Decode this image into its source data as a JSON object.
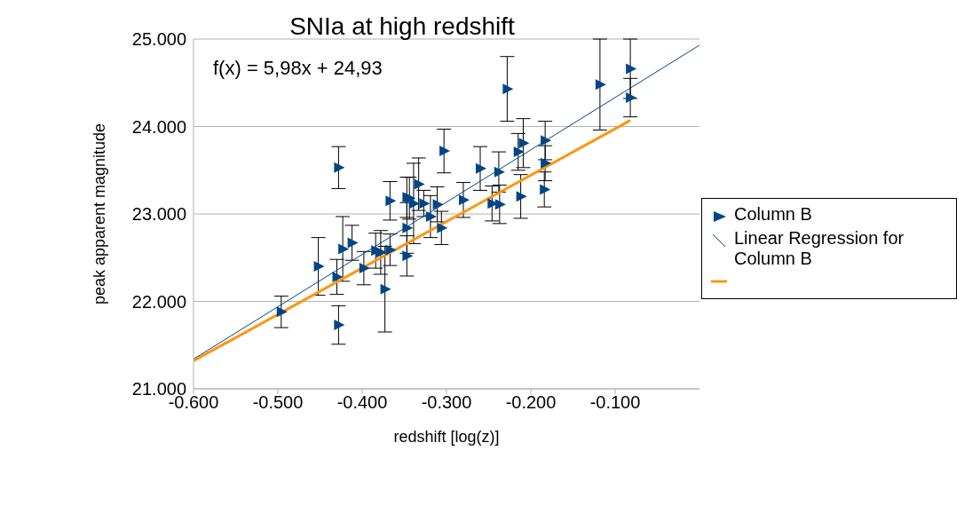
{
  "chart_data": {
    "type": "scatter",
    "title": "SNIa at high redshift",
    "xlabel": "redshift  [log(z)]",
    "ylabel": "peak apparent magnitude",
    "annotations": [
      "f(x) = 5,98x + 24,93"
    ],
    "xlim": [
      -0.6,
      0
    ],
    "xticks": [
      {
        "value": -0.6,
        "label": "-0.600"
      },
      {
        "value": -0.5,
        "label": "-0.500"
      },
      {
        "value": -0.4,
        "label": "-0.400"
      },
      {
        "value": -0.3,
        "label": "-0.300"
      },
      {
        "value": -0.2,
        "label": "-0.200"
      },
      {
        "value": -0.1,
        "label": "-0.100"
      }
    ],
    "ylim": [
      21,
      25
    ],
    "yticks": [
      {
        "value": 21,
        "label": "21.000"
      },
      {
        "value": 22,
        "label": "22.000"
      },
      {
        "value": 23,
        "label": "23.000"
      },
      {
        "value": 24,
        "label": "24.000"
      },
      {
        "value": 25,
        "label": "25.000"
      }
    ],
    "grid": "y",
    "legend": "right",
    "series": [
      {
        "name": "Column B",
        "color": "#004586",
        "marker": "triangle",
        "x": [
          -0.496,
          -0.452,
          -0.428,
          -0.43,
          -0.428,
          -0.423,
          -0.412,
          -0.398,
          -0.384,
          -0.378,
          -0.373,
          -0.367,
          -0.367,
          -0.347,
          -0.347,
          -0.347,
          -0.344,
          -0.339,
          -0.333,
          -0.327,
          -0.319,
          -0.311,
          -0.306,
          -0.303,
          -0.28,
          -0.26,
          -0.246,
          -0.238,
          -0.237,
          -0.228,
          -0.215,
          -0.209,
          -0.212,
          -0.183,
          -0.183,
          -0.184,
          -0.118,
          -0.082,
          -0.082
        ],
        "values": [
          21.88,
          22.4,
          23.53,
          22.28,
          21.73,
          22.6,
          22.67,
          22.38,
          22.58,
          22.56,
          22.14,
          22.59,
          23.15,
          23.19,
          22.84,
          22.52,
          23.18,
          23.12,
          23.34,
          23.12,
          22.97,
          23.11,
          22.84,
          23.72,
          23.16,
          23.52,
          23.12,
          23.48,
          23.11,
          24.43,
          23.71,
          23.81,
          23.2,
          23.84,
          23.58,
          23.28,
          24.48,
          24.66,
          24.33
        ],
        "errors": [
          0.18,
          0.33,
          0.24,
          0.2,
          0.22,
          0.37,
          0.2,
          0.19,
          0.2,
          0.25,
          0.49,
          0.18,
          0.22,
          0.23,
          0.29,
          0.23,
          0.24,
          0.46,
          0.3,
          0.15,
          0.24,
          0.2,
          0.19,
          0.25,
          0.2,
          0.25,
          0.2,
          0.23,
          0.22,
          0.37,
          0.21,
          0.28,
          0.25,
          0.22,
          0.2,
          0.2,
          0.52,
          0.34,
          0.22
        ]
      },
      {
        "type": "line",
        "name": "Linear Regression for Column B",
        "color": "#004586",
        "marker": "none",
        "x": [
          -0.6,
          0
        ],
        "values": [
          21.34,
          24.93
        ]
      },
      {
        "type": "line",
        "color": "#ff950e",
        "marker": "none",
        "x": [
          -0.6,
          -0.082
        ],
        "values": [
          21.32,
          24.07
        ]
      }
    ]
  }
}
